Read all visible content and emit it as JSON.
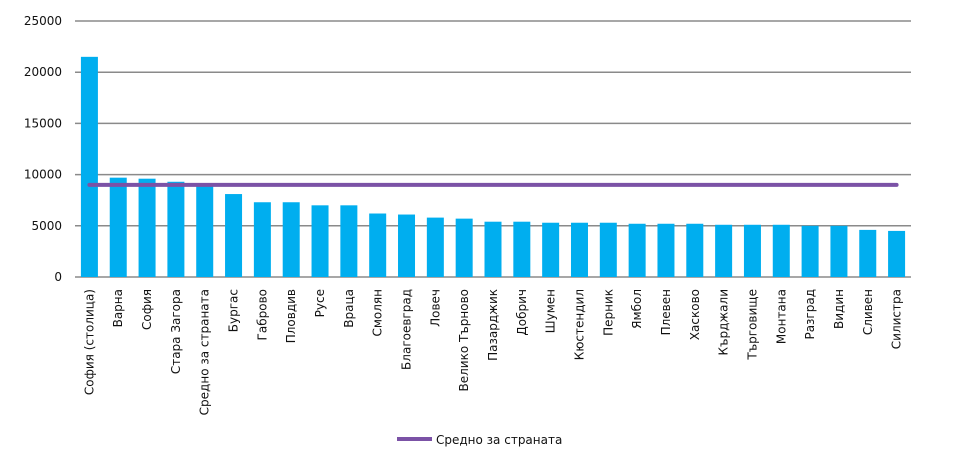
{
  "chart_data": {
    "type": "bar",
    "categories": [
      "София (столица)",
      "Варна",
      "София",
      "Стара Загора",
      "Средно за страната",
      "Бургас",
      "Габрово",
      "Пловдив",
      "Русе",
      "Враца",
      "Смолян",
      "Благоевград",
      "Ловеч",
      "Велико Търново",
      "Пазарджик",
      "Добрич",
      "Шумен",
      "Кюстендил",
      "Перник",
      "Ямбол",
      "Плевен",
      "Хасково",
      "Кърджали",
      "Търговище",
      "Монтана",
      "Разград",
      "Видин",
      "Сливен",
      "Силистра"
    ],
    "series": [
      {
        "type": "bar",
        "values": [
          21500,
          9700,
          9600,
          9300,
          9000,
          8100,
          7300,
          7300,
          7000,
          7000,
          6200,
          6100,
          5800,
          5700,
          5400,
          5400,
          5300,
          5300,
          5300,
          5200,
          5200,
          5200,
          5100,
          5100,
          5100,
          5000,
          5000,
          4600,
          4500
        ],
        "color": "#00aeef"
      },
      {
        "type": "line",
        "name": "Средно за страната",
        "value": 9000,
        "color": "#7b52a6"
      }
    ],
    "ylim": [
      0,
      25000
    ],
    "yticks": [
      0,
      5000,
      10000,
      15000,
      20000,
      25000
    ],
    "grid": true,
    "legend_position": "bottom"
  }
}
